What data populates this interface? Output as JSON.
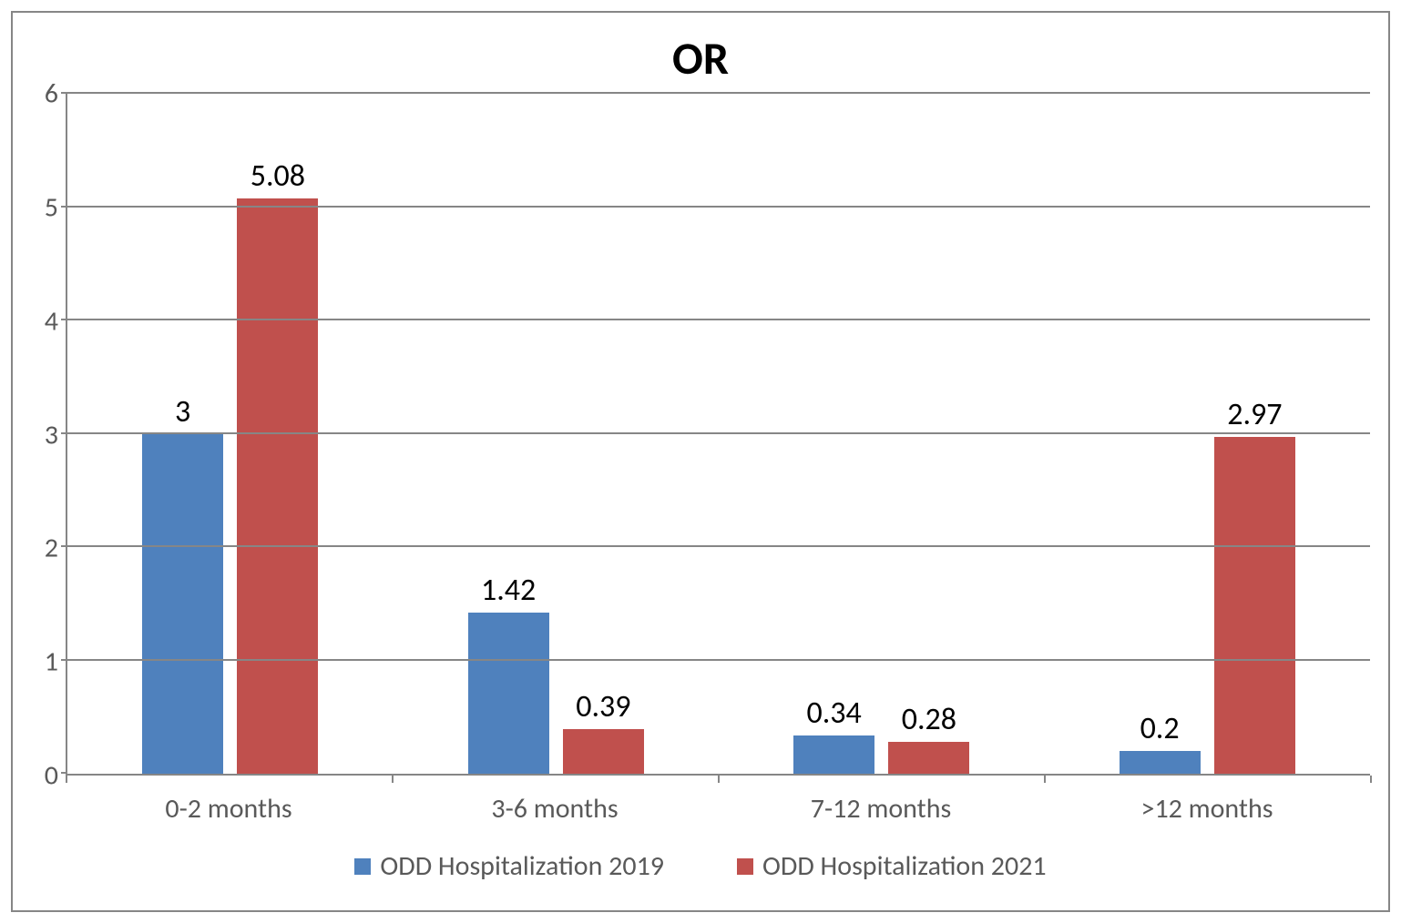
{
  "chart": {
    "type": "bar",
    "title": "OR",
    "title_fontsize": 50,
    "title_fontweight": "bold",
    "title_color": "#000000",
    "background_color": "#ffffff",
    "frame_border_color": "#868686",
    "grid_color": "#868686",
    "axis_color": "#868686",
    "axis_label_color": "#595959",
    "data_label_color": "#000000",
    "axis_fontsize": 30,
    "data_label_fontsize": 34,
    "ylim": [
      0,
      6
    ],
    "ytick_step": 1,
    "yticks": [
      0,
      1,
      2,
      3,
      4,
      5,
      6
    ],
    "categories": [
      "0-2 months",
      "3-6 months",
      "7-12 months",
      ">12 months"
    ],
    "series": [
      {
        "name": "ODD Hospitalization 2019",
        "color": "#4f81bd",
        "values": [
          3,
          1.42,
          0.34,
          0.2
        ]
      },
      {
        "name": "ODD Hospitalization 2021",
        "color": "#c0504d",
        "values": [
          5.08,
          0.39,
          0.28,
          2.97
        ]
      }
    ],
    "bar_cluster_width_pct": 54,
    "bar_width_pct": 46,
    "legend_position": "bottom",
    "legend_fontsize": 30,
    "legend_swatch_size": 18
  }
}
